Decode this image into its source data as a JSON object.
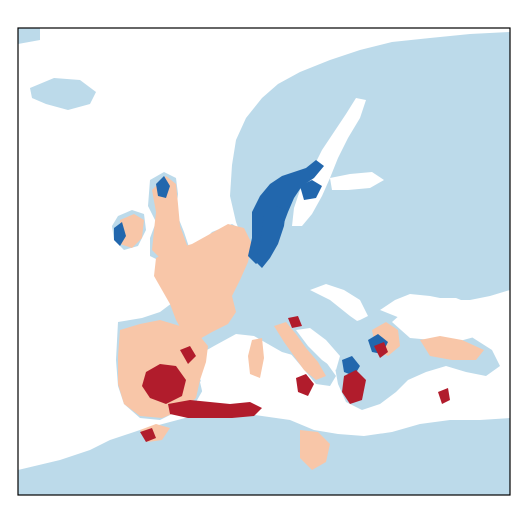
{
  "map": {
    "colors": {
      "background": "#ffffff",
      "land_base": "#bcdaea",
      "range_unchanged": "#f8c6a8",
      "range_gain": "#2267ad",
      "range_loss": "#b11c2c",
      "frame": "#000000"
    },
    "legend": []
  }
}
